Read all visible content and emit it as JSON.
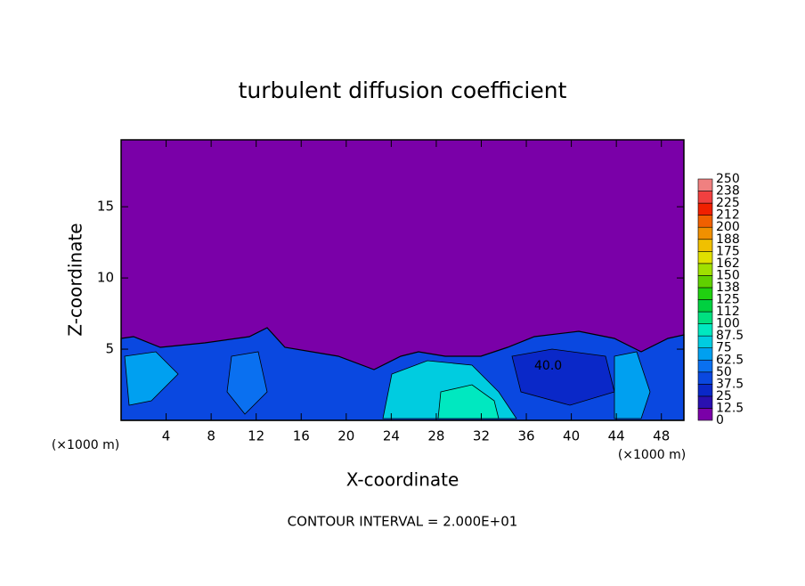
{
  "chart_data": {
    "type": "contour",
    "title": "turbulent diffusion coefficient",
    "xlabel": "X-coordinate",
    "ylabel": "Z-coordinate",
    "x_unit": "(×1000 m)",
    "footer": "CONTOUR INTERVAL = 2.000E+01",
    "contour_label": "40.0",
    "xlim": [
      0,
      50
    ],
    "ylim": [
      0,
      19.7
    ],
    "xticks": [
      4,
      8,
      12,
      16,
      20,
      24,
      28,
      32,
      36,
      40,
      44,
      48
    ],
    "yticks": [
      5,
      10,
      15
    ],
    "colorbar": {
      "ticks": [
        0,
        12.5,
        25,
        37.5,
        50,
        62.5,
        75,
        87.5,
        100,
        {
          "value": 112.5,
          "label": "112"
        },
        125,
        {
          "value": 137.5,
          "label": "138"
        },
        150,
        {
          "value": 162.5,
          "label": "162"
        },
        175,
        {
          "value": 187.5,
          "label": "188"
        },
        200,
        {
          "value": 212.5,
          "label": "212"
        },
        225,
        {
          "value": 237.5,
          "label": "238"
        },
        250
      ],
      "colors": [
        "#7a00a8",
        "#2a10b0",
        "#0a28c8",
        "#0a48e0",
        "#0a70f0",
        "#00a0f0",
        "#00cce0",
        "#00e8c0",
        "#00e080",
        "#00d040",
        "#20d010",
        "#60d000",
        "#a0e000",
        "#e0e000",
        "#f0c000",
        "#f09000",
        "#f06000",
        "#f02000",
        "#f04040",
        "#f08080"
      ]
    }
  }
}
